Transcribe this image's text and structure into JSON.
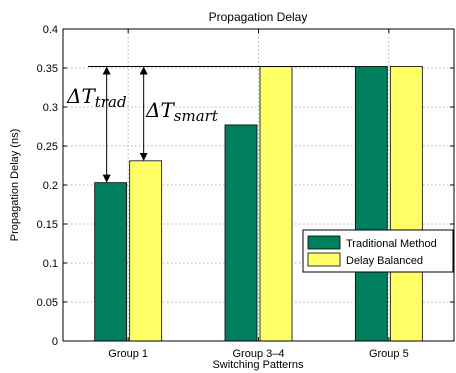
{
  "chart_data": {
    "type": "bar",
    "title": "Propagation Delay",
    "xlabel": "Switching Patterns",
    "ylabel": "Propagation Delay (ns)",
    "categories": [
      "Group 1",
      "Group 3–4",
      "Group 5"
    ],
    "series": [
      {
        "name": "Traditional Method",
        "color": "#007f5f",
        "values": [
          0.203,
          0.277,
          0.352
        ]
      },
      {
        "name": "Delay Balanced",
        "color": "#ffff66",
        "values": [
          0.231,
          0.352,
          0.352
        ]
      }
    ],
    "ylim": [
      0,
      0.4
    ],
    "yticks": [
      0,
      0.05,
      0.1,
      0.15,
      0.2,
      0.25,
      0.3,
      0.35,
      0.4
    ],
    "ytick_labels": [
      "0",
      "0.05",
      "0.1",
      "0.15",
      "0.2",
      "0.25",
      "0.3",
      "0.35",
      "0.4"
    ],
    "grid": true,
    "legend_position": "right",
    "annotations": {
      "reference_value": 0.352,
      "trad_label_base": "ΔT",
      "trad_label_sub": "trad",
      "smart_label_base": "ΔT",
      "smart_label_sub": "smart"
    }
  }
}
